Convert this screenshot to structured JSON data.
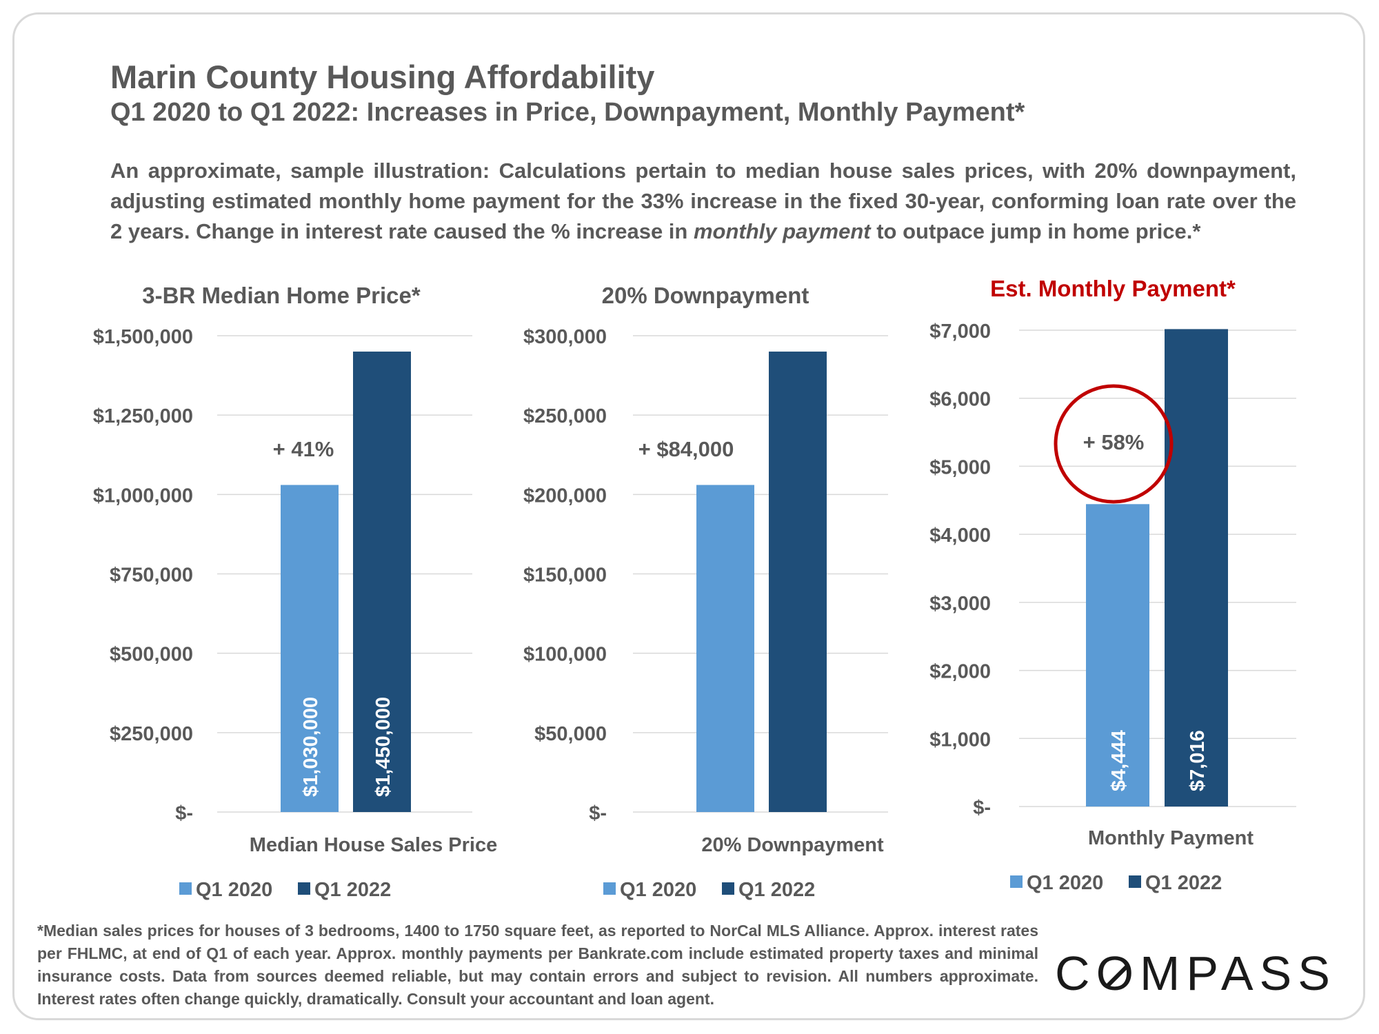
{
  "header": {
    "title": "Marin County Housing Affordability",
    "subtitle": "Q1 2020 to Q1 2022: Increases in Price, Downpayment, Monthly Payment*",
    "intro_part1": "An approximate, sample illustration: Calculations pertain to median house sales prices, with 20% downpayment, adjusting estimated monthly home payment for the 33% increase in the fixed 30-year, conforming loan rate over the 2 years. Change in interest rate caused the % increase in ",
    "intro_emphasis": "monthly payment",
    "intro_part2": " to outpace jump in home price.*"
  },
  "colors": {
    "q1_2020": "#5b9bd5",
    "q1_2022": "#1f4e79",
    "highlight": "#c00000",
    "text": "#595959",
    "grid": "#d9d9d9"
  },
  "chart_data": [
    {
      "type": "bar",
      "title": "3-BR Median Home Price*",
      "xlabel": "Median House Sales Price",
      "categories": [
        "Median House Sales Price"
      ],
      "series": [
        {
          "name": "Q1 2020",
          "values": [
            1030000
          ],
          "label": "$1,030,000"
        },
        {
          "name": "Q1 2022",
          "values": [
            1450000
          ],
          "label": "$1,450,000"
        }
      ],
      "yticks": [
        "$-",
        "$250,000",
        "$500,000",
        "$750,000",
        "$1,000,000",
        "$1,250,000",
        "$1,500,000"
      ],
      "ylim": [
        0,
        1500000
      ],
      "annotation": "+ 41%",
      "legend": "bottom"
    },
    {
      "type": "bar",
      "title": "20% Downpayment",
      "xlabel": "20% Downpayment",
      "categories": [
        "20% Downpayment"
      ],
      "series": [
        {
          "name": "Q1 2020",
          "values": [
            206000
          ]
        },
        {
          "name": "Q1 2022",
          "values": [
            290000
          ]
        }
      ],
      "yticks": [
        "$-",
        "$50,000",
        "$100,000",
        "$150,000",
        "$200,000",
        "$250,000",
        "$300,000"
      ],
      "ylim": [
        0,
        300000
      ],
      "annotation": "+ $84,000",
      "legend": "bottom"
    },
    {
      "type": "bar",
      "title": "Est. Monthly Payment*",
      "title_color": "#c00000",
      "xlabel": "Monthly Payment",
      "categories": [
        "Monthly Payment"
      ],
      "series": [
        {
          "name": "Q1 2020",
          "values": [
            4444
          ],
          "label": "$4,444"
        },
        {
          "name": "Q1 2022",
          "values": [
            7016
          ],
          "label": "$7,016"
        }
      ],
      "yticks": [
        "$-",
        "$1,000",
        "$2,000",
        "$3,000",
        "$4,000",
        "$5,000",
        "$6,000",
        "$7,000"
      ],
      "ylim": [
        0,
        7000
      ],
      "annotation": "+ 58%",
      "annotation_circled": true,
      "legend": "bottom"
    }
  ],
  "footnote": "*Median sales prices for houses of 3 bedrooms, 1400 to 1750 square feet, as reported to NorCal MLS Alliance. Approx. interest rates per FHLMC, at end of Q1 of each year. Approx. monthly payments per Bankrate.com include estimated property taxes and minimal insurance costs. Data from sources deemed reliable, but may contain errors and subject to revision. All numbers approximate. Interest rates often change quickly, dramatically. Consult your accountant and loan agent.",
  "logo": {
    "part1": "C",
    "o": "O",
    "part2": "MPASS"
  }
}
